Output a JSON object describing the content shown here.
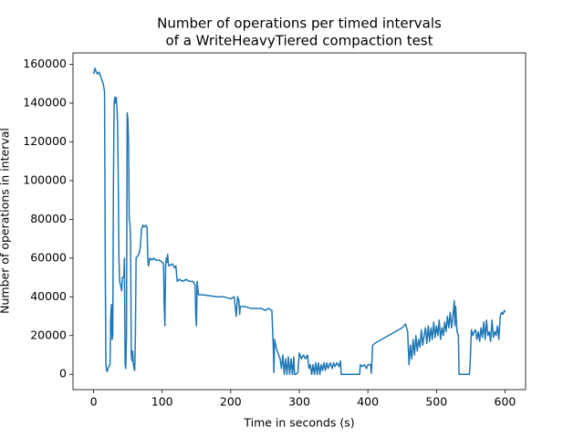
{
  "chart_data": {
    "type": "line",
    "title": [
      "Number of operations per timed intervals",
      "of a WriteHeavyTiered compaction test"
    ],
    "x_label": "Time in seconds (s)",
    "y_label": "Number of operations in interval",
    "xlim": [
      -30,
      630
    ],
    "xticks": [
      0,
      100,
      200,
      300,
      400,
      500,
      600
    ],
    "ylim": [
      -7900,
      165900
    ],
    "yticks": [
      0,
      20000,
      40000,
      60000,
      80000,
      100000,
      120000,
      140000,
      160000
    ],
    "x": [
      0,
      2,
      4,
      6,
      8,
      10,
      12,
      14,
      16,
      17,
      18,
      19,
      20,
      22,
      24,
      25,
      26,
      27,
      28,
      29,
      30,
      31,
      32,
      33,
      34,
      35,
      36,
      37,
      38,
      40,
      41,
      42,
      44,
      45,
      46,
      47,
      48,
      49,
      50,
      51,
      52,
      53,
      54,
      55,
      56,
      57,
      58,
      59,
      60,
      61,
      62,
      64,
      66,
      68,
      70,
      72,
      74,
      76,
      78,
      79,
      80,
      82,
      85,
      88,
      90,
      95,
      100,
      102,
      103,
      104,
      105,
      106,
      107,
      108,
      109,
      110,
      115,
      118,
      120,
      122,
      125,
      130,
      135,
      140,
      145,
      148,
      149,
      150,
      151,
      153,
      160,
      170,
      180,
      190,
      200,
      205,
      208,
      210,
      212,
      213,
      214,
      220,
      230,
      240,
      245,
      250,
      255,
      260,
      262,
      263,
      264,
      266,
      268,
      270,
      272,
      274,
      276,
      278,
      280,
      282,
      284,
      286,
      288,
      290,
      292,
      293,
      295,
      298,
      300,
      303,
      306,
      309,
      312,
      314,
      316,
      318,
      320,
      322,
      324,
      326,
      328,
      330,
      332,
      334,
      336,
      338,
      340,
      342,
      345,
      348,
      350,
      352,
      355,
      358,
      360,
      361,
      370,
      380,
      388,
      389,
      392,
      395,
      398,
      400,
      404,
      405,
      407,
      410,
      415,
      420,
      425,
      430,
      435,
      440,
      445,
      450,
      455,
      458,
      460,
      462,
      464,
      466,
      468,
      470,
      472,
      474,
      476,
      478,
      480,
      482,
      484,
      486,
      488,
      490,
      492,
      494,
      496,
      498,
      500,
      502,
      504,
      506,
      508,
      510,
      512,
      514,
      516,
      518,
      520,
      522,
      524,
      526,
      527,
      528,
      530,
      532,
      533,
      540,
      548,
      549,
      551,
      553,
      555,
      557,
      559,
      561,
      563,
      565,
      567,
      569,
      571,
      573,
      575,
      577,
      579,
      581,
      583,
      585,
      587,
      589,
      591,
      593,
      595,
      597,
      599,
      600
    ],
    "series": [
      {
        "color": "#1f77b4",
        "values": [
          155000,
          158000,
          156000,
          155000,
          156000,
          154000,
          152000,
          150000,
          146000,
          60000,
          5000,
          2000,
          1500,
          4000,
          5000,
          30000,
          36000,
          18000,
          20000,
          100000,
          140000,
          143000,
          140000,
          143000,
          138000,
          130000,
          100000,
          60000,
          48000,
          45000,
          43000,
          50000,
          50000,
          60000,
          5000,
          3000,
          20000,
          135000,
          132000,
          120000,
          80000,
          78000,
          70000,
          10000,
          7000,
          12000,
          5000,
          3000,
          2000,
          20000,
          60000,
          61000,
          62000,
          65000,
          75000,
          77000,
          76000,
          77000,
          76000,
          60000,
          56000,
          60000,
          59000,
          60000,
          59000,
          59000,
          58000,
          57000,
          35000,
          25000,
          55000,
          60000,
          58000,
          62000,
          57000,
          56000,
          57000,
          55000,
          56000,
          48000,
          49000,
          48000,
          49000,
          48000,
          48000,
          46000,
          30000,
          25000,
          48000,
          41000,
          41000,
          40500,
          40000,
          40000,
          39000,
          40000,
          30000,
          40000,
          38000,
          31000,
          35000,
          35000,
          34000,
          34000,
          34000,
          33000,
          34000,
          33000,
          15000,
          1000,
          18000,
          14000,
          12000,
          10000,
          8000,
          3000,
          10000,
          0,
          8000,
          0,
          9000,
          0,
          8000,
          0,
          9000,
          0,
          0,
          1000,
          11000,
          8000,
          10000,
          8000,
          10000,
          3000,
          5000,
          0,
          5000,
          0,
          6000,
          0,
          6000,
          0,
          5000,
          2000,
          6000,
          2000,
          6000,
          3000,
          6000,
          3000,
          6000,
          4000,
          6000,
          4000,
          7000,
          0,
          0,
          0,
          0,
          5000,
          4000,
          5000,
          3000,
          5000,
          5000,
          500,
          15000,
          16000,
          17000,
          18000,
          19000,
          20000,
          21000,
          22000,
          23000,
          24000,
          26000,
          22000,
          5000,
          15000,
          8000,
          18000,
          10000,
          20000,
          12000,
          18000,
          14000,
          23000,
          15000,
          20000,
          24000,
          16000,
          25000,
          17000,
          24000,
          18000,
          27000,
          19000,
          25000,
          20000,
          28000,
          18000,
          24000,
          20000,
          27000,
          22000,
          30000,
          24000,
          32000,
          24000,
          30000,
          38000,
          25000,
          35000,
          22000,
          20000,
          0,
          0,
          0,
          5000,
          23000,
          20000,
          22000,
          23000,
          18000,
          22000,
          17000,
          24000,
          19000,
          27000,
          18000,
          28000,
          20000,
          22000,
          17000,
          28000,
          19000,
          22000,
          20000,
          25000,
          18000,
          30000,
          32000,
          31000,
          33000,
          32000
        ]
      }
    ]
  }
}
